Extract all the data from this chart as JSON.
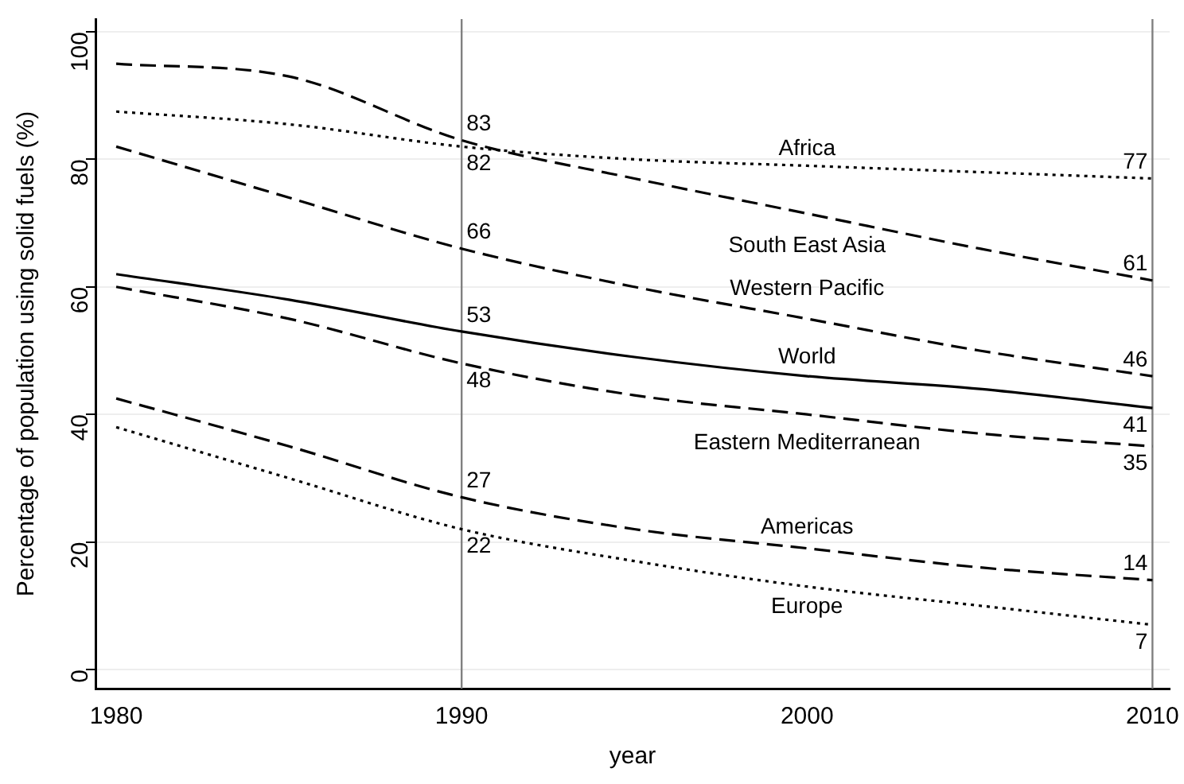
{
  "chart_data": {
    "type": "line",
    "xlabel": "year",
    "ylabel": "Percentage of population using solid fuels (%)",
    "x": [
      1980,
      1985,
      1990,
      1995,
      2000,
      2005,
      2010
    ],
    "series": [
      {
        "name": "Africa",
        "color": "#000000",
        "line_style": "dotted",
        "values": [
          87.5,
          85.5,
          82,
          80,
          79,
          78,
          77
        ],
        "value_labels": [
          null,
          null,
          "82",
          null,
          null,
          null,
          "77"
        ]
      },
      {
        "name": "South East Asia",
        "color": "#000000",
        "line_style": "dashed",
        "values": [
          95,
          93,
          83,
          77,
          71.5,
          66,
          61
        ],
        "value_labels": [
          null,
          null,
          "83",
          null,
          null,
          null,
          "61"
        ]
      },
      {
        "name": "Western Pacific",
        "color": "#000000",
        "line_style": "dashed",
        "values": [
          82,
          74,
          66,
          60,
          55,
          50,
          46
        ],
        "value_labels": [
          null,
          null,
          "66",
          null,
          null,
          null,
          "46"
        ]
      },
      {
        "name": "World",
        "color": "#000000",
        "line_style": "solid",
        "values": [
          62,
          58,
          53,
          49,
          46,
          44,
          41
        ],
        "value_labels": [
          null,
          null,
          "53",
          null,
          null,
          null,
          "41"
        ]
      },
      {
        "name": "Eastern Mediterranean",
        "color": "#000000",
        "line_style": "dashed",
        "values": [
          60,
          55,
          48,
          43,
          40,
          37,
          35
        ],
        "value_labels": [
          null,
          null,
          "48",
          null,
          null,
          null,
          "35"
        ]
      },
      {
        "name": "Americas",
        "color": "#000000",
        "line_style": "dashed",
        "values": [
          42.5,
          35,
          27,
          22,
          19,
          16,
          14
        ],
        "value_labels": [
          null,
          null,
          "27",
          null,
          null,
          null,
          "14"
        ]
      },
      {
        "name": "Europe",
        "color": "#000000",
        "line_style": "dotted",
        "values": [
          38,
          30,
          22,
          17,
          13,
          10,
          7
        ],
        "value_labels": [
          null,
          null,
          "22",
          null,
          null,
          null,
          "7"
        ]
      }
    ],
    "xlim": [
      1979.4,
      2010.5
    ],
    "xticks": [
      1980,
      1990,
      2000,
      2010
    ],
    "ylim": [
      -3,
      102
    ],
    "yticks": [
      0,
      20,
      40,
      60,
      80,
      100
    ],
    "ref_lines": [
      {
        "axis": "x",
        "value": 1990,
        "color": "#808080"
      },
      {
        "axis": "x",
        "value": 2010,
        "color": "#808080"
      }
    ],
    "grid": "y",
    "legend": false,
    "marker": "none"
  }
}
